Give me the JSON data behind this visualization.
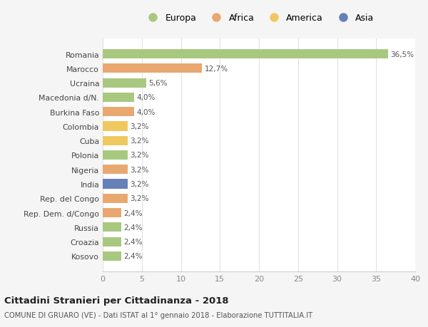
{
  "countries": [
    "Romania",
    "Marocco",
    "Ucraina",
    "Macedonia d/N.",
    "Burkina Faso",
    "Colombia",
    "Cuba",
    "Polonia",
    "Nigeria",
    "India",
    "Rep. del Congo",
    "Rep. Dem. d/Congo",
    "Russia",
    "Croazia",
    "Kosovo"
  ],
  "values": [
    36.5,
    12.7,
    5.6,
    4.0,
    4.0,
    3.2,
    3.2,
    3.2,
    3.2,
    3.2,
    3.2,
    2.4,
    2.4,
    2.4,
    2.4
  ],
  "labels": [
    "36,5%",
    "12,7%",
    "5,6%",
    "4,0%",
    "4,0%",
    "3,2%",
    "3,2%",
    "3,2%",
    "3,2%",
    "3,2%",
    "3,2%",
    "2,4%",
    "2,4%",
    "2,4%",
    "2,4%"
  ],
  "colors": [
    "#a8c880",
    "#e8a870",
    "#a8c880",
    "#a8c880",
    "#e8a870",
    "#f0c860",
    "#f0c860",
    "#a8c880",
    "#e8a870",
    "#6680b8",
    "#e8a870",
    "#e8a870",
    "#a8c880",
    "#a8c880",
    "#a8c880"
  ],
  "legend_labels": [
    "Europa",
    "Africa",
    "America",
    "Asia"
  ],
  "legend_colors": [
    "#a8c880",
    "#e8a870",
    "#f0c860",
    "#6680b8"
  ],
  "xlim": [
    0,
    40
  ],
  "xticks": [
    0,
    5,
    10,
    15,
    20,
    25,
    30,
    35,
    40
  ],
  "title": "Cittadini Stranieri per Cittadinanza - 2018",
  "subtitle": "COMUNE DI GRUARO (VE) - Dati ISTAT al 1° gennaio 2018 - Elaborazione TUTTITALIA.IT",
  "bg_color": "#f5f5f5",
  "plot_bg_color": "#ffffff"
}
